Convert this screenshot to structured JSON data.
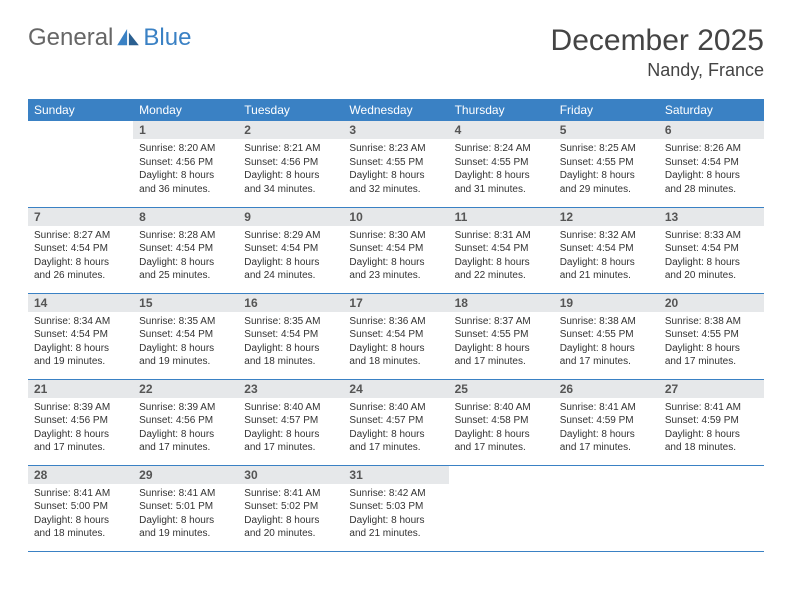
{
  "brand": {
    "part1": "General",
    "part2": "Blue"
  },
  "title": "December 2025",
  "location": "Nandy, France",
  "colors": {
    "accent": "#3a81c4",
    "header_bg": "#e6e8ea",
    "text": "#333333"
  },
  "weekdays": [
    "Sunday",
    "Monday",
    "Tuesday",
    "Wednesday",
    "Thursday",
    "Friday",
    "Saturday"
  ],
  "layout": {
    "first_weekday_index": 1,
    "days_in_month": 31,
    "rows": 5
  },
  "days": {
    "1": {
      "sunrise": "8:20 AM",
      "sunset": "4:56 PM",
      "daylight": "8 hours and 36 minutes."
    },
    "2": {
      "sunrise": "8:21 AM",
      "sunset": "4:56 PM",
      "daylight": "8 hours and 34 minutes."
    },
    "3": {
      "sunrise": "8:23 AM",
      "sunset": "4:55 PM",
      "daylight": "8 hours and 32 minutes."
    },
    "4": {
      "sunrise": "8:24 AM",
      "sunset": "4:55 PM",
      "daylight": "8 hours and 31 minutes."
    },
    "5": {
      "sunrise": "8:25 AM",
      "sunset": "4:55 PM",
      "daylight": "8 hours and 29 minutes."
    },
    "6": {
      "sunrise": "8:26 AM",
      "sunset": "4:54 PM",
      "daylight": "8 hours and 28 minutes."
    },
    "7": {
      "sunrise": "8:27 AM",
      "sunset": "4:54 PM",
      "daylight": "8 hours and 26 minutes."
    },
    "8": {
      "sunrise": "8:28 AM",
      "sunset": "4:54 PM",
      "daylight": "8 hours and 25 minutes."
    },
    "9": {
      "sunrise": "8:29 AM",
      "sunset": "4:54 PM",
      "daylight": "8 hours and 24 minutes."
    },
    "10": {
      "sunrise": "8:30 AM",
      "sunset": "4:54 PM",
      "daylight": "8 hours and 23 minutes."
    },
    "11": {
      "sunrise": "8:31 AM",
      "sunset": "4:54 PM",
      "daylight": "8 hours and 22 minutes."
    },
    "12": {
      "sunrise": "8:32 AM",
      "sunset": "4:54 PM",
      "daylight": "8 hours and 21 minutes."
    },
    "13": {
      "sunrise": "8:33 AM",
      "sunset": "4:54 PM",
      "daylight": "8 hours and 20 minutes."
    },
    "14": {
      "sunrise": "8:34 AM",
      "sunset": "4:54 PM",
      "daylight": "8 hours and 19 minutes."
    },
    "15": {
      "sunrise": "8:35 AM",
      "sunset": "4:54 PM",
      "daylight": "8 hours and 19 minutes."
    },
    "16": {
      "sunrise": "8:35 AM",
      "sunset": "4:54 PM",
      "daylight": "8 hours and 18 minutes."
    },
    "17": {
      "sunrise": "8:36 AM",
      "sunset": "4:54 PM",
      "daylight": "8 hours and 18 minutes."
    },
    "18": {
      "sunrise": "8:37 AM",
      "sunset": "4:55 PM",
      "daylight": "8 hours and 17 minutes."
    },
    "19": {
      "sunrise": "8:38 AM",
      "sunset": "4:55 PM",
      "daylight": "8 hours and 17 minutes."
    },
    "20": {
      "sunrise": "8:38 AM",
      "sunset": "4:55 PM",
      "daylight": "8 hours and 17 minutes."
    },
    "21": {
      "sunrise": "8:39 AM",
      "sunset": "4:56 PM",
      "daylight": "8 hours and 17 minutes."
    },
    "22": {
      "sunrise": "8:39 AM",
      "sunset": "4:56 PM",
      "daylight": "8 hours and 17 minutes."
    },
    "23": {
      "sunrise": "8:40 AM",
      "sunset": "4:57 PM",
      "daylight": "8 hours and 17 minutes."
    },
    "24": {
      "sunrise": "8:40 AM",
      "sunset": "4:57 PM",
      "daylight": "8 hours and 17 minutes."
    },
    "25": {
      "sunrise": "8:40 AM",
      "sunset": "4:58 PM",
      "daylight": "8 hours and 17 minutes."
    },
    "26": {
      "sunrise": "8:41 AM",
      "sunset": "4:59 PM",
      "daylight": "8 hours and 17 minutes."
    },
    "27": {
      "sunrise": "8:41 AM",
      "sunset": "4:59 PM",
      "daylight": "8 hours and 18 minutes."
    },
    "28": {
      "sunrise": "8:41 AM",
      "sunset": "5:00 PM",
      "daylight": "8 hours and 18 minutes."
    },
    "29": {
      "sunrise": "8:41 AM",
      "sunset": "5:01 PM",
      "daylight": "8 hours and 19 minutes."
    },
    "30": {
      "sunrise": "8:41 AM",
      "sunset": "5:02 PM",
      "daylight": "8 hours and 20 minutes."
    },
    "31": {
      "sunrise": "8:42 AM",
      "sunset": "5:03 PM",
      "daylight": "8 hours and 21 minutes."
    }
  },
  "labels": {
    "sunrise": "Sunrise:",
    "sunset": "Sunset:",
    "daylight": "Daylight:"
  }
}
